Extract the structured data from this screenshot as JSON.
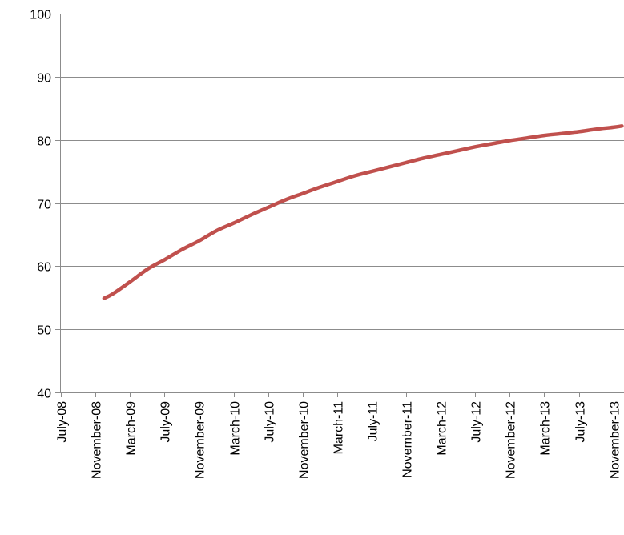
{
  "chart_data": {
    "type": "line",
    "title": "",
    "xlabel": "",
    "ylabel": "",
    "ylim": [
      40,
      100
    ],
    "yticks": [
      40,
      50,
      60,
      70,
      80,
      90,
      100
    ],
    "grid": "horizontal",
    "legend": "none",
    "x_tick_labels": [
      "July-08",
      "November-08",
      "March-09",
      "July-09",
      "November-09",
      "March-10",
      "July-10",
      "November-10",
      "March-11",
      "July-11",
      "November-11",
      "March-12",
      "July-12",
      "November-12",
      "March-13",
      "July-13",
      "November-13"
    ],
    "series": [
      {
        "color": "#c0504d",
        "points": [
          {
            "x": "2008-12",
            "y": 54.9
          },
          {
            "x": "2009-01",
            "y": 55.6
          },
          {
            "x": "2009-03",
            "y": 57.5
          },
          {
            "x": "2009-05",
            "y": 59.5
          },
          {
            "x": "2009-07",
            "y": 61.0
          },
          {
            "x": "2009-09",
            "y": 62.6
          },
          {
            "x": "2009-11",
            "y": 64.0
          },
          {
            "x": "2010-01",
            "y": 65.6
          },
          {
            "x": "2010-03",
            "y": 66.8
          },
          {
            "x": "2010-05",
            "y": 68.1
          },
          {
            "x": "2010-07",
            "y": 69.3
          },
          {
            "x": "2010-09",
            "y": 70.5
          },
          {
            "x": "2010-11",
            "y": 71.5
          },
          {
            "x": "2011-01",
            "y": 72.5
          },
          {
            "x": "2011-03",
            "y": 73.4
          },
          {
            "x": "2011-05",
            "y": 74.3
          },
          {
            "x": "2011-07",
            "y": 75.0
          },
          {
            "x": "2011-09",
            "y": 75.7
          },
          {
            "x": "2011-11",
            "y": 76.4
          },
          {
            "x": "2012-01",
            "y": 77.1
          },
          {
            "x": "2012-03",
            "y": 77.7
          },
          {
            "x": "2012-05",
            "y": 78.3
          },
          {
            "x": "2012-07",
            "y": 78.9
          },
          {
            "x": "2012-09",
            "y": 79.4
          },
          {
            "x": "2012-11",
            "y": 79.9
          },
          {
            "x": "2013-01",
            "y": 80.3
          },
          {
            "x": "2013-03",
            "y": 80.7
          },
          {
            "x": "2013-05",
            "y": 81.0
          },
          {
            "x": "2013-07",
            "y": 81.3
          },
          {
            "x": "2013-09",
            "y": 81.7
          },
          {
            "x": "2013-11",
            "y": 82.0
          },
          {
            "x": "2013-12",
            "y": 82.2
          }
        ]
      }
    ]
  }
}
